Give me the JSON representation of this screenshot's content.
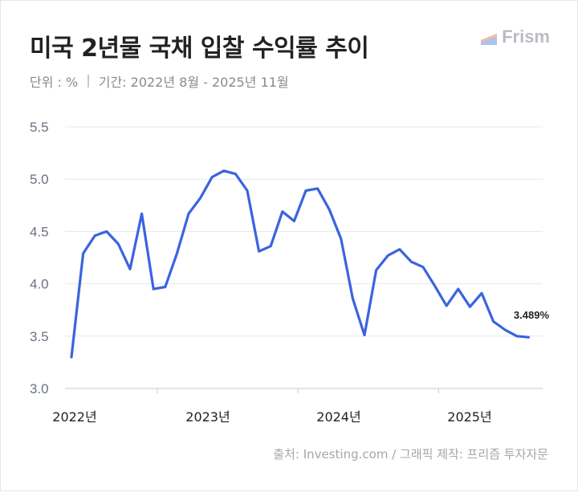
{
  "header": {
    "title": "미국 2년물 국채 입찰 수익률 추이",
    "unit": "단위 : %",
    "period": "기간: 2022년 8월 - 2025년 11월",
    "brand": "Frism"
  },
  "footer": {
    "source": "출처: Investing.com / 그래픽 제작: 프리즘 투자자문"
  },
  "colors": {
    "line": "#3b63e0",
    "grid": "#e5e7eb"
  },
  "chart_data": {
    "type": "line",
    "title": "미국 2년물 국채 입찰 수익률 추이",
    "ylabel": "",
    "xlabel": "",
    "ylim": [
      3.0,
      5.5
    ],
    "yticks": [
      "3.0",
      "3.5",
      "4.0",
      "4.5",
      "5.0",
      "5.5"
    ],
    "x_tick_labels": [
      "2022년",
      "2023년",
      "2024년",
      "2025년"
    ],
    "grid": true,
    "series": [
      {
        "values": [
          3.3,
          4.29,
          4.46,
          4.5,
          4.38,
          4.14,
          4.67,
          3.95,
          3.97,
          4.29,
          4.67,
          4.82,
          5.02,
          5.08,
          5.05,
          4.89,
          4.31,
          4.36,
          4.69,
          4.6,
          4.89,
          4.91,
          4.71,
          4.43,
          3.86,
          3.51,
          4.13,
          4.27,
          4.33,
          4.21,
          4.16,
          3.98,
          3.79,
          3.95,
          3.78,
          3.91,
          3.64,
          3.56,
          3.5,
          3.489
        ]
      }
    ],
    "end_label": "3.489%"
  }
}
